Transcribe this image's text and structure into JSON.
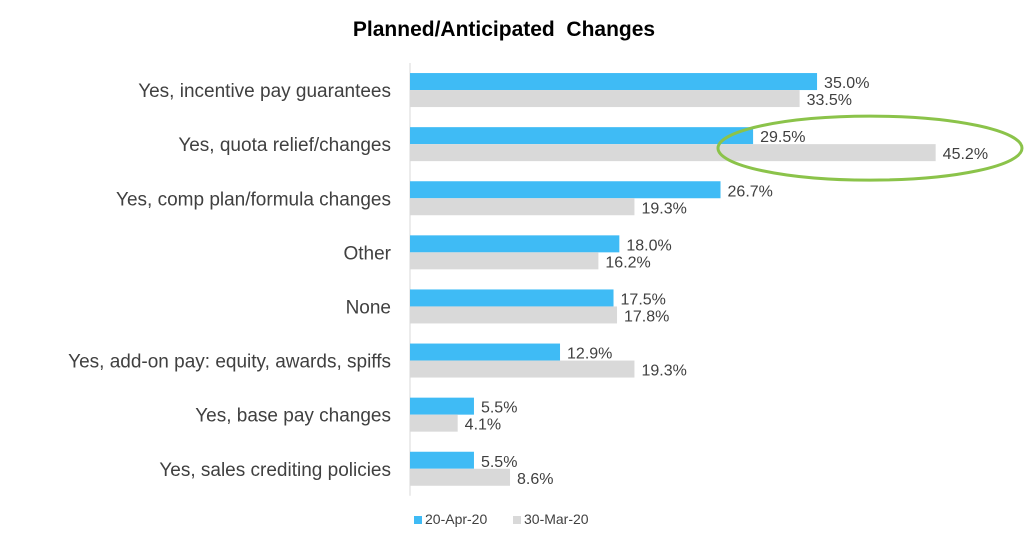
{
  "chart_data": {
    "type": "bar",
    "orientation": "horizontal",
    "title": "Planned/Anticipated  Changes",
    "categories": [
      "Yes, incentive pay guarantees",
      "Yes, quota relief/changes",
      "Yes, comp plan/formula changes",
      "Other",
      "None",
      "Yes, add-on pay: equity, awards, spiffs",
      "Yes, base pay changes",
      "Yes, sales crediting policies"
    ],
    "series": [
      {
        "name": "20-Apr-20",
        "color": "#3FBBF5",
        "values": [
          35.0,
          29.5,
          26.7,
          18.0,
          17.5,
          12.9,
          5.5,
          5.5
        ],
        "labels": [
          "35.0%",
          "29.5%",
          "26.7%",
          "18.0%",
          "17.5%",
          "12.9%",
          "5.5%",
          "5.5%"
        ]
      },
      {
        "name": "30-Mar-20",
        "color": "#D9D9D9",
        "values": [
          33.5,
          45.2,
          19.3,
          16.2,
          17.8,
          19.3,
          4.1,
          8.6
        ],
        "labels": [
          "33.5%",
          "45.2%",
          "19.3%",
          "16.2%",
          "17.8%",
          "19.3%",
          "4.1%",
          "8.6%"
        ]
      }
    ],
    "xlim": [
      0,
      50
    ],
    "grid": false,
    "legend_position": "bottom",
    "annotations": [
      {
        "type": "ellipse-highlight",
        "category": "Yes, quota relief/changes",
        "color": "#8BC34A"
      }
    ]
  }
}
